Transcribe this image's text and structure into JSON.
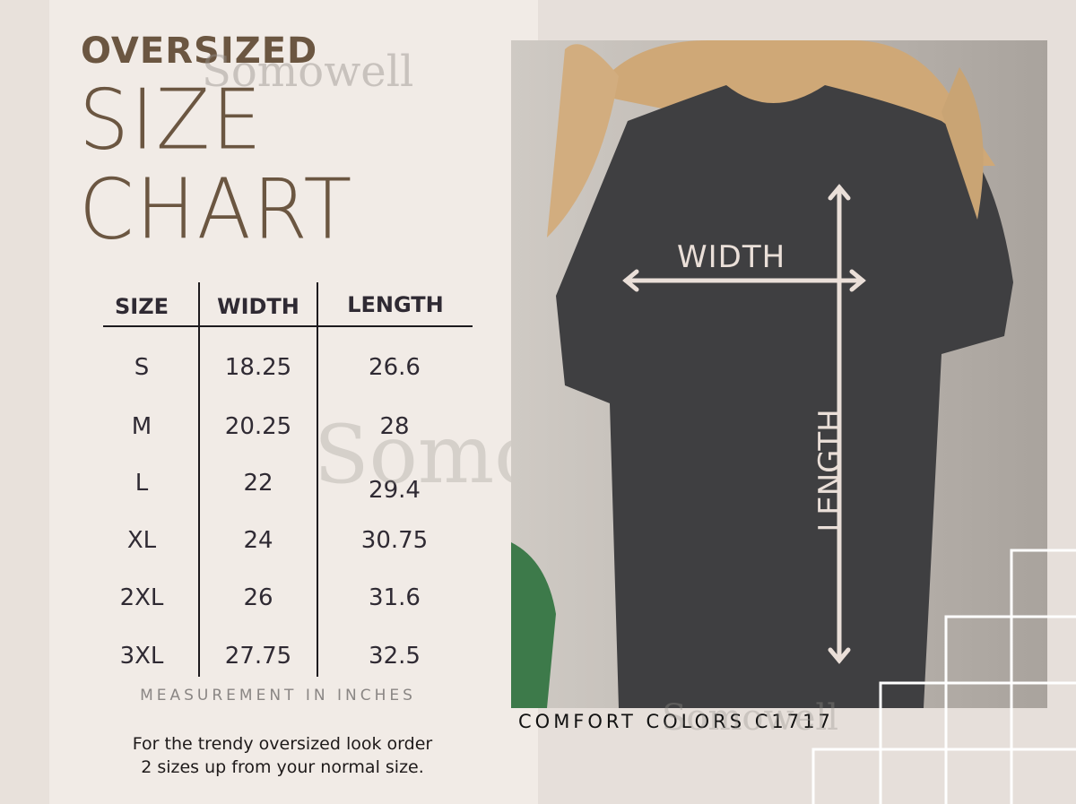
{
  "title": {
    "line1": "OVERSIZED",
    "line2": "SIZE",
    "line3": "CHART"
  },
  "watermark": "Somowell",
  "table": {
    "headers": [
      "SIZE",
      "WIDTH",
      "LENGTH"
    ],
    "rows": [
      [
        "S",
        "18.25",
        "26.6"
      ],
      [
        "M",
        "20.25",
        "28"
      ],
      [
        "L",
        "22",
        "29.4"
      ],
      [
        "XL",
        "24",
        "30.75"
      ],
      [
        "2XL",
        "26",
        "31.6"
      ],
      [
        "3XL",
        "27.75",
        "32.5"
      ]
    ]
  },
  "unit_note": "MEASUREMENT IN INCHES",
  "advice": {
    "line1": "For the trendy oversized look order",
    "line2": "2 sizes up from your normal size."
  },
  "photo": {
    "width_label": "WIDTH",
    "length_label": "LENGTH",
    "shirt_color": "#3f3f41"
  },
  "brand": "COMFORT COLORS C1717"
}
